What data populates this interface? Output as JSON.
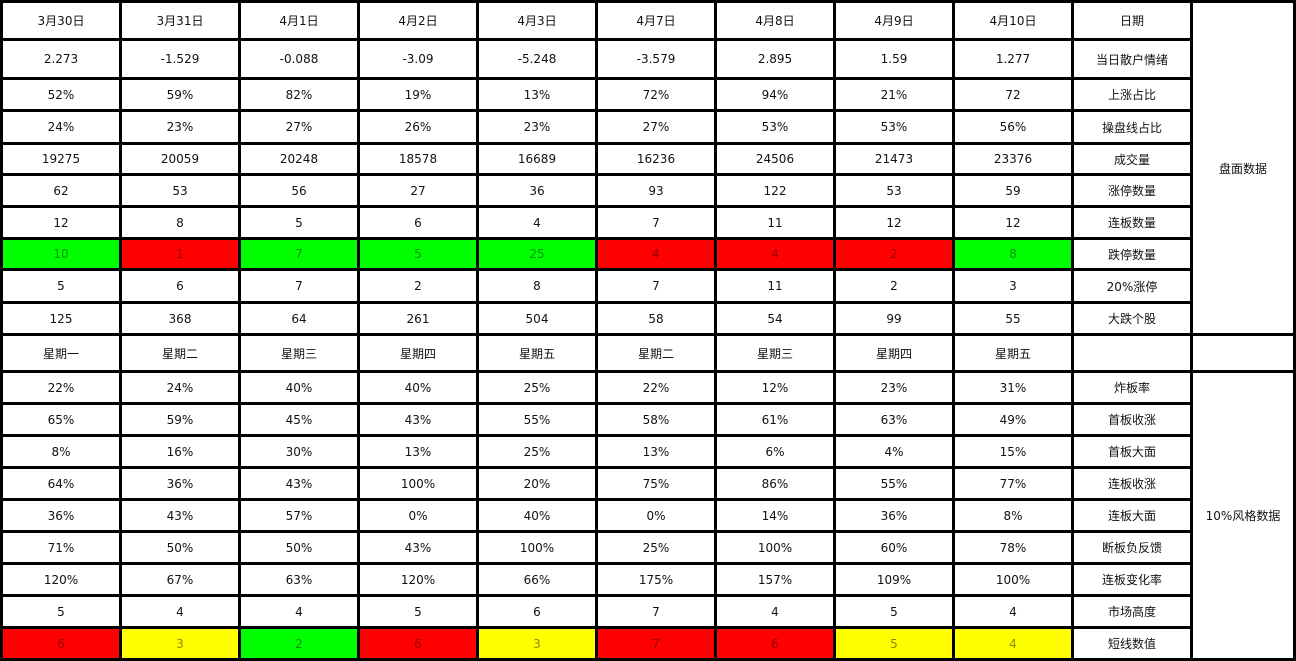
{
  "colors": {
    "red": "#ff0000",
    "green": "#00ff00",
    "yellow": "#ffff00"
  },
  "sections": [
    {
      "group_label": "盘面数据",
      "rows": [
        {
          "label": "日期",
          "values": [
            "3月30日",
            "3月31日",
            "4月1日",
            "4月2日",
            "4月3日",
            "4月7日",
            "4月8日",
            "4月9日",
            "4月10日"
          ]
        },
        {
          "label": "当日散户情绪",
          "values": [
            "2.273",
            "-1.529",
            "-0.088",
            "-3.09",
            "-5.248",
            "-3.579",
            "2.895",
            "1.59",
            "1.277"
          ]
        },
        {
          "label": "上涨占比",
          "values": [
            "52%",
            "59%",
            "82%",
            "19%",
            "13%",
            "72%",
            "94%",
            "21%",
            "72"
          ]
        },
        {
          "label": "操盘线占比",
          "values": [
            "24%",
            "23%",
            "27%",
            "26%",
            "23%",
            "27%",
            "53%",
            "53%",
            "56%"
          ]
        },
        {
          "label": "成交量",
          "values": [
            "19275",
            "20059",
            "20248",
            "18578",
            "16689",
            "16236",
            "24506",
            "21473",
            "23376"
          ]
        },
        {
          "label": "涨停数量",
          "values": [
            "62",
            "53",
            "56",
            "27",
            "36",
            "93",
            "122",
            "53",
            "59"
          ]
        },
        {
          "label": "连板数量",
          "values": [
            "12",
            "8",
            "5",
            "6",
            "4",
            "7",
            "11",
            "12",
            "12"
          ]
        },
        {
          "label": "跌停数量",
          "values": [
            "10",
            "1",
            "7",
            "5",
            "25",
            "4",
            "4",
            "2",
            "8"
          ],
          "highlights": [
            "green",
            "red",
            "green",
            "green",
            "green",
            "red",
            "red",
            "red",
            "green"
          ]
        },
        {
          "label": "20%涨停",
          "values": [
            "5",
            "6",
            "7",
            "2",
            "8",
            "7",
            "11",
            "2",
            "3"
          ]
        },
        {
          "label": "大跌个股",
          "values": [
            "125",
            "368",
            "64",
            "261",
            "504",
            "58",
            "54",
            "99",
            "55"
          ]
        }
      ]
    },
    {
      "group_label": "",
      "rows": [
        {
          "label": "",
          "values": [
            "星期一",
            "星期二",
            "星期三",
            "星期四",
            "星期五",
            "星期二",
            "星期三",
            "星期四",
            "星期五"
          ]
        }
      ]
    },
    {
      "group_label": "10%风格数据",
      "rows": [
        {
          "label": "炸板率",
          "values": [
            "22%",
            "24%",
            "40%",
            "40%",
            "25%",
            "22%",
            "12%",
            "23%",
            "31%"
          ]
        },
        {
          "label": "首板收涨",
          "values": [
            "65%",
            "59%",
            "45%",
            "43%",
            "55%",
            "58%",
            "61%",
            "63%",
            "49%"
          ]
        },
        {
          "label": "首板大面",
          "values": [
            "8%",
            "16%",
            "30%",
            "13%",
            "25%",
            "13%",
            "6%",
            "4%",
            "15%"
          ]
        },
        {
          "label": "连板收涨",
          "values": [
            "64%",
            "36%",
            "43%",
            "100%",
            "20%",
            "75%",
            "86%",
            "55%",
            "77%"
          ]
        },
        {
          "label": "连板大面",
          "values": [
            "36%",
            "43%",
            "57%",
            "0%",
            "40%",
            "0%",
            "14%",
            "36%",
            "8%"
          ]
        },
        {
          "label": "断板负反馈",
          "values": [
            "71%",
            "50%",
            "50%",
            "43%",
            "100%",
            "25%",
            "100%",
            "60%",
            "78%"
          ]
        },
        {
          "label": "连板变化率",
          "values": [
            "120%",
            "67%",
            "63%",
            "120%",
            "66%",
            "175%",
            "157%",
            "109%",
            "100%"
          ]
        },
        {
          "label": "市场高度",
          "values": [
            "5",
            "4",
            "4",
            "5",
            "6",
            "7",
            "4",
            "5",
            "4"
          ]
        },
        {
          "label": "短线数值",
          "values": [
            "6",
            "3",
            "2",
            "6",
            "3",
            "7",
            "6",
            "5",
            "4"
          ],
          "highlights": [
            "red",
            "yellow",
            "green",
            "red",
            "yellow",
            "red",
            "red",
            "yellow",
            "yellow"
          ]
        }
      ]
    }
  ]
}
